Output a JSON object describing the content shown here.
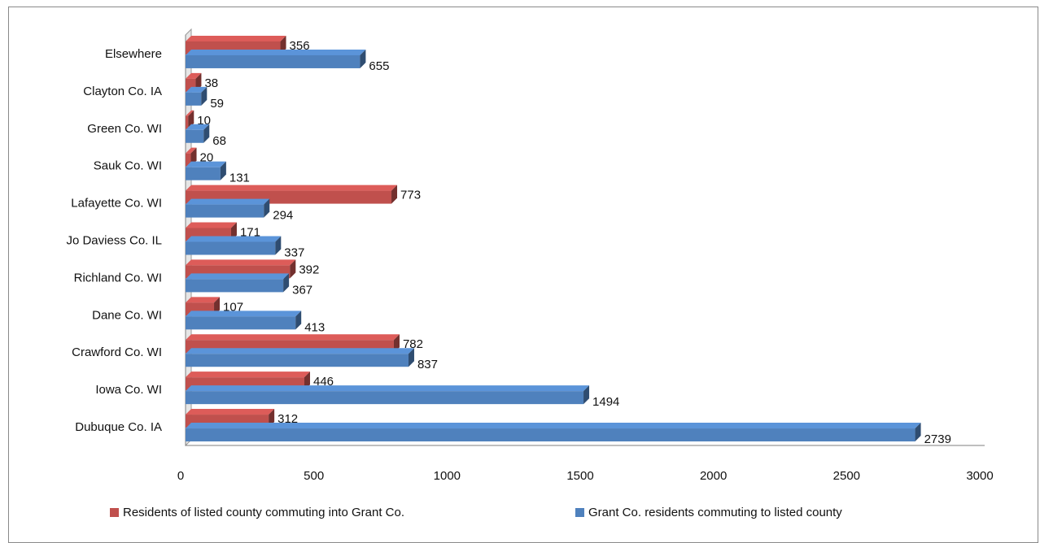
{
  "chart_data": {
    "type": "bar",
    "orientation": "horizontal",
    "categories": [
      "Dubuque Co. IA",
      "Iowa Co. WI",
      "Crawford Co. WI",
      "Dane Co. WI",
      "Richland Co. WI",
      "Jo Daviess Co. IL",
      "Lafayette Co. WI",
      "Sauk Co. WI",
      "Green Co. WI",
      "Clayton Co. IA",
      "Elsewhere"
    ],
    "series": [
      {
        "name": "Residents of listed county commuting into Grant Co.",
        "color": "#c0504d",
        "values": [
          312,
          446,
          782,
          107,
          392,
          171,
          773,
          20,
          10,
          38,
          356
        ]
      },
      {
        "name": "Grant Co. residents commuting to listed county",
        "color": "#4f81bd",
        "values": [
          2739,
          1494,
          837,
          413,
          367,
          337,
          294,
          131,
          68,
          59,
          655
        ]
      }
    ],
    "xlim": [
      0,
      3000
    ],
    "xticks": [
      "0",
      "500",
      "1000",
      "1500",
      "2000",
      "2500",
      "3000"
    ],
    "legend_position": "bottom",
    "gridlines": false,
    "style": "3d"
  }
}
